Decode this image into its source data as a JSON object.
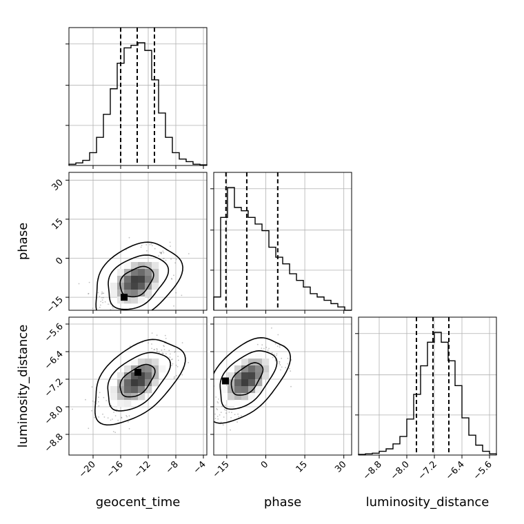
{
  "chart_data": {
    "type": "corner",
    "parameters": [
      "geocent_time",
      "phase",
      "luminosity_distance"
    ],
    "axis_labels": {
      "x": [
        "geocent_time",
        "phase",
        "luminosity_distance"
      ],
      "y": [
        "phase",
        "luminosity_distance"
      ]
    },
    "ranges": {
      "geocent_time": [
        -23.5,
        -3.5
      ],
      "phase": [
        -20,
        33
      ],
      "luminosity_distance": [
        -9.4,
        -5.4
      ]
    },
    "ticks": {
      "geocent_time": [
        "-20",
        "-16",
        "-12",
        "-8",
        "-4"
      ],
      "phase": [
        "-15",
        "0",
        "15",
        "30"
      ],
      "luminosity_distance": [
        "-8.8",
        "-8.0",
        "-7.2",
        "-6.4",
        "-5.6"
      ]
    },
    "tick_values": {
      "geocent_time": [
        -20,
        -16,
        -12,
        -8,
        -4
      ],
      "phase": [
        -15,
        0,
        15,
        30
      ],
      "luminosity_distance": [
        -8.8,
        -8.0,
        -7.2,
        -6.4,
        -5.6
      ]
    },
    "quantiles": {
      "geocent_time": [
        -16.0,
        -13.6,
        -11.1
      ],
      "phase": [
        -15.3,
        -7.3,
        4.6
      ],
      "luminosity_distance": [
        -7.72,
        -7.24,
        -6.78
      ]
    },
    "histograms": {
      "geocent_time": {
        "edges": [
          -23.5,
          -22.5,
          -21.5,
          -20.5,
          -19.5,
          -18.5,
          -17.5,
          -16.5,
          -15.5,
          -14.5,
          -13.5,
          -12.5,
          -11.5,
          -10.5,
          -9.5,
          -8.5,
          -7.5,
          -6.5,
          -5.5,
          -4.5,
          -3.5
        ],
        "counts": [
          1,
          2,
          4,
          10,
          22,
          40,
          60,
          80,
          92,
          94,
          96,
          90,
          67,
          41,
          22,
          10,
          5,
          3,
          1,
          0.5
        ]
      },
      "phase": {
        "edges": [
          -20,
          -17.35,
          -14.7,
          -12.05,
          -9.4,
          -6.75,
          -4.1,
          -1.45,
          1.2,
          3.85,
          6.5,
          9.15,
          11.8,
          14.45,
          17.1,
          19.75,
          22.4,
          25.05,
          27.7,
          30.35,
          33
        ],
        "counts": [
          4,
          28,
          37,
          31,
          30,
          28,
          26,
          24,
          19,
          16,
          14,
          11,
          9,
          7,
          5,
          4,
          3,
          2,
          1,
          0
        ]
      },
      "luminosity_distance": {
        "edges": [
          -9.4,
          -9.2,
          -9.0,
          -8.8,
          -8.6,
          -8.4,
          -8.2,
          -8.0,
          -7.8,
          -7.6,
          -7.4,
          -7.2,
          -7.0,
          -6.8,
          -6.6,
          -6.4,
          -6.2,
          -6.0,
          -5.8,
          -5.6,
          -5.4
        ],
        "counts": [
          0.5,
          1,
          1.5,
          3,
          5,
          9,
          15,
          29,
          49,
          72,
          91,
          99,
          91,
          76,
          56,
          30,
          16,
          8,
          3,
          1
        ]
      }
    },
    "distributions_2d": {
      "geocent_time_vs_phase": {
        "mean": [
          -13.7,
          -9.0
        ],
        "sd": [
          2.4,
          5.8
        ],
        "rho": 0.35,
        "mode": [
          -15.5,
          -15.0
        ],
        "contour_levels": [
          "1sigma",
          "2sigma",
          "3sigma"
        ]
      },
      "geocent_time_vs_luminosity_distance": {
        "mean": [
          -13.6,
          -7.25
        ],
        "sd": [
          2.5,
          0.47
        ],
        "rho": 0.5,
        "mode": [
          -13.5,
          -7.0
        ],
        "contour_levels": [
          "1sigma",
          "2sigma",
          "3sigma"
        ]
      },
      "phase_vs_luminosity_distance": {
        "mean": [
          -7.3,
          -7.2
        ],
        "sd": [
          6.0,
          0.47
        ],
        "rho": 0.5,
        "mode": [
          -15.5,
          -7.25
        ],
        "contour_levels": [
          "1sigma",
          "2sigma",
          "3sigma"
        ]
      }
    },
    "grid": true,
    "colors": {
      "lines": "#000000",
      "grid": "#b0b0b0",
      "samples": "#808080"
    }
  }
}
